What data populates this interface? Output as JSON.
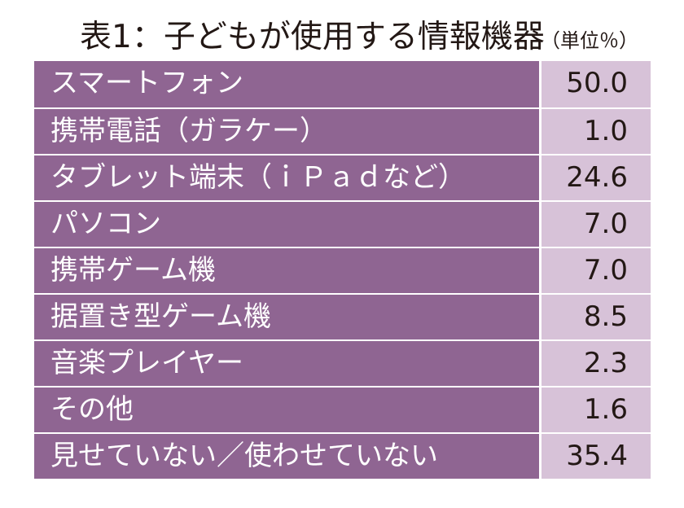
{
  "title": "表1：子どもが使用する情報機器",
  "unit": "（単位％）",
  "colors": {
    "label_bg": "#8f6592",
    "value_bg": "#d7c2d8",
    "label_text": "#ffffff",
    "value_text": "#231815"
  },
  "rows": [
    {
      "label": "スマートフォン",
      "value": "50.0"
    },
    {
      "label": "携帯電話（ガラケー）",
      "value": "1.0"
    },
    {
      "label": "タブレット端末（ｉＰａｄなど）",
      "value": "24.6"
    },
    {
      "label": "パソコン",
      "value": "7.0"
    },
    {
      "label": "携帯ゲーム機",
      "value": "7.0"
    },
    {
      "label": "据置き型ゲーム機",
      "value": "8.5"
    },
    {
      "label": "音楽プレイヤー",
      "value": "2.3"
    },
    {
      "label": "その他",
      "value": "1.6"
    },
    {
      "label": "見せていない／使わせていない",
      "value": "35.4"
    }
  ]
}
